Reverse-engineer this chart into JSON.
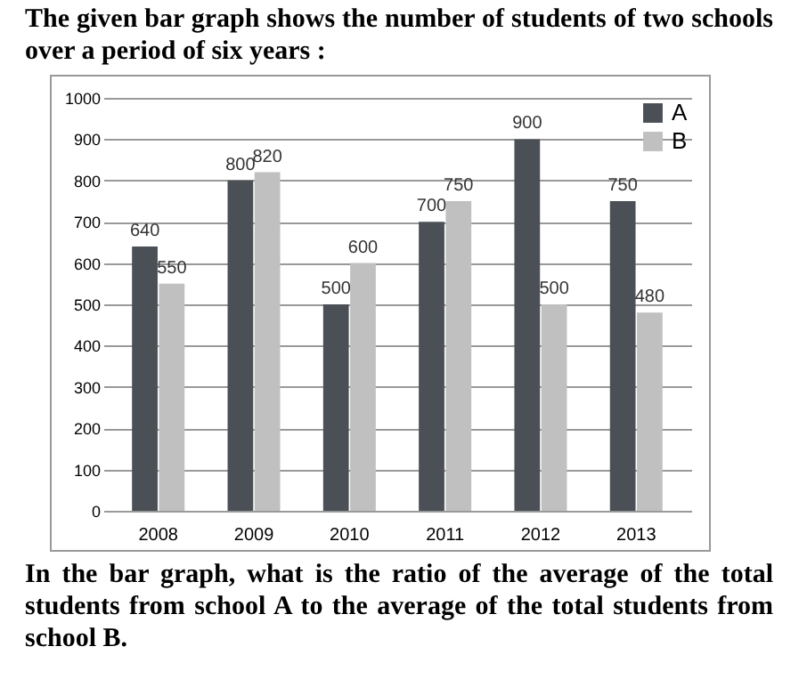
{
  "chart_data": {
    "type": "bar",
    "title": "The given bar graph shows the number of students of two schools over a period of six years :",
    "categories": [
      "2008",
      "2009",
      "2010",
      "2011",
      "2012",
      "2013"
    ],
    "series": [
      {
        "name": "A",
        "color": "#4a5055",
        "values": [
          640,
          800,
          500,
          700,
          900,
          750
        ]
      },
      {
        "name": "B",
        "color": "#c0c0c0",
        "values": [
          550,
          820,
          600,
          750,
          500,
          480
        ]
      }
    ],
    "ylim": [
      0,
      1000
    ],
    "yticks": [
      0,
      100,
      200,
      300,
      400,
      500,
      600,
      700,
      800,
      900,
      1000
    ],
    "grid": "y",
    "legend": "top right",
    "data_labels": true,
    "annotations": [
      "In the bar graph, what is the ratio of the average of the total students from school A to the average of the total students from school B."
    ]
  }
}
